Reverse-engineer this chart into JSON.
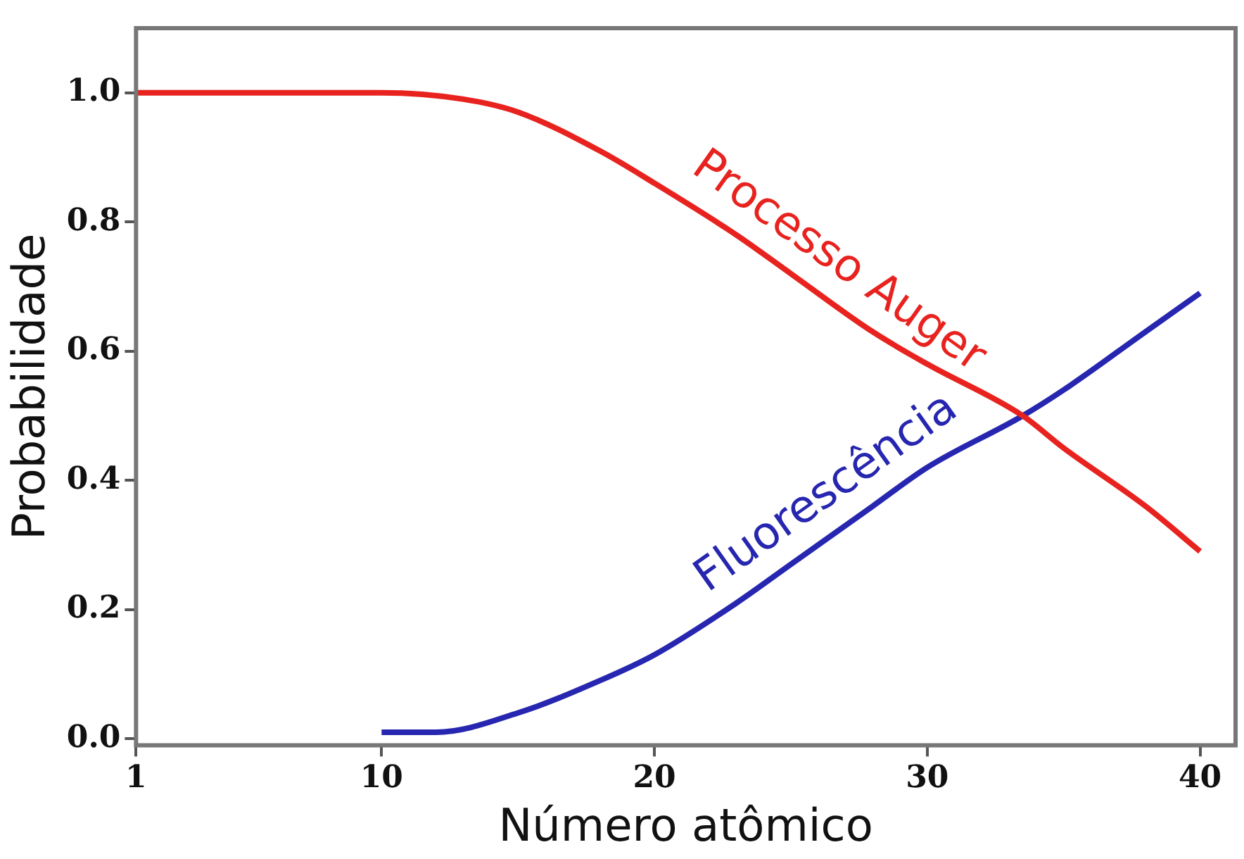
{
  "chart_data": {
    "type": "line",
    "xlabel": "Número atômico",
    "ylabel": "Probabilidade",
    "xlim": [
      1,
      41.3
    ],
    "xticks": [
      1,
      10,
      20,
      30,
      40
    ],
    "ylim": [
      -0.01,
      1.1
    ],
    "yticks": [
      {
        "value": 0,
        "label": "0.0"
      },
      0.2,
      0.4,
      0.6,
      0.8,
      {
        "value": 1,
        "label": "1.0"
      }
    ],
    "grid": false,
    "legend": false,
    "marker": "none",
    "line_style": "solid",
    "series": [
      {
        "name": "Processo Auger",
        "color": "#e8231f",
        "x": [
          1,
          4,
          7,
          10,
          13,
          15,
          18,
          20,
          23,
          25,
          28,
          30,
          33.5,
          35,
          38,
          40
        ],
        "values": [
          1.0,
          1.0,
          1.0,
          1.0,
          0.99,
          0.97,
          0.91,
          0.86,
          0.78,
          0.72,
          0.63,
          0.58,
          0.5,
          0.45,
          0.36,
          0.29
        ]
      },
      {
        "name": "Fluorescência",
        "color": "#2626b0",
        "x": [
          10,
          12,
          15,
          18,
          20,
          23,
          25,
          28,
          30,
          33.5,
          35,
          38,
          40
        ],
        "values": [
          0.01,
          0.01,
          0.04,
          0.09,
          0.13,
          0.21,
          0.27,
          0.36,
          0.42,
          0.5,
          0.54,
          0.63,
          0.69
        ]
      }
    ]
  }
}
